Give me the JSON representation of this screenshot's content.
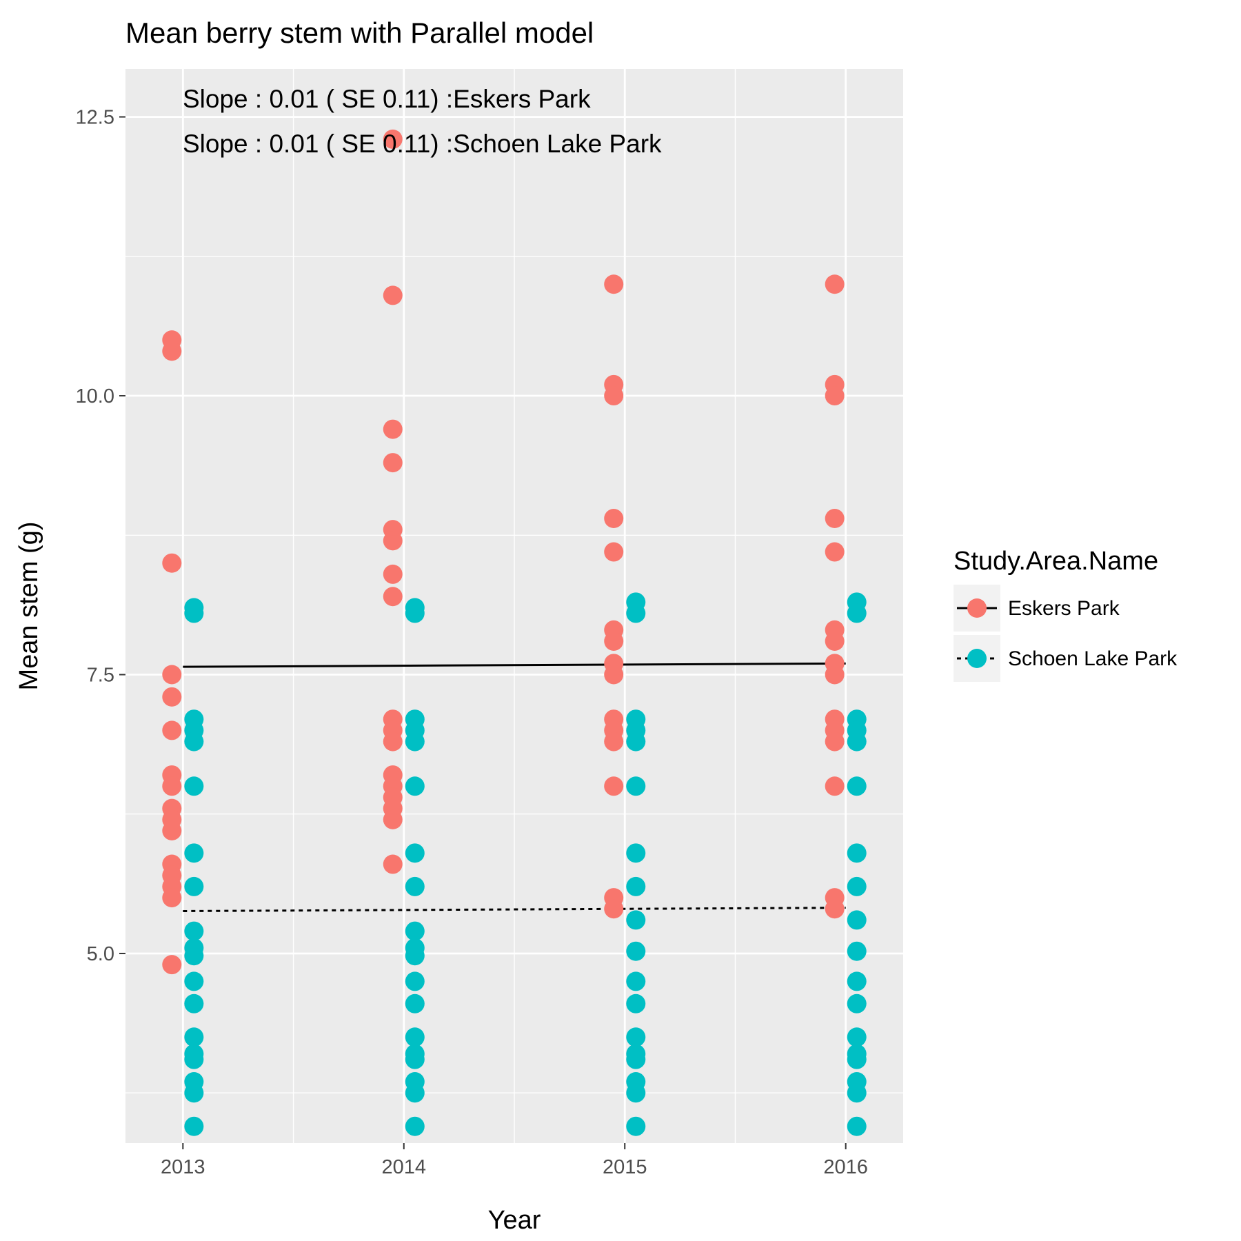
{
  "chart_data": {
    "type": "scatter",
    "title": "Mean berry stem with  Parallel model",
    "xlabel": "Year",
    "ylabel": "Mean stem (g)",
    "x_ticks": [
      "2013",
      "2014",
      "2015",
      "2016"
    ],
    "y_ticks": [
      "5.0",
      "7.5",
      "10.0",
      "12.5"
    ],
    "xlim": [
      2012.74,
      2016.26
    ],
    "ylim": [
      3.3,
      12.93
    ],
    "grid": true,
    "legend": {
      "title": "Study.Area.Name",
      "position": "right"
    },
    "annotations": [
      "Slope : 0.01 ( SE 0.11) :Eskers Park",
      "Slope : 0.01 ( SE 0.11) :Schoen Lake Park"
    ],
    "series": [
      {
        "name": "Eskers Park",
        "color": "#F8766D",
        "line_style": "solid",
        "fit_line": {
          "x": [
            2013,
            2016
          ],
          "y": [
            7.57,
            7.6
          ]
        },
        "points": [
          [
            2013,
            10.5
          ],
          [
            2013,
            10.4
          ],
          [
            2013,
            8.5
          ],
          [
            2013,
            7.5
          ],
          [
            2013,
            7.3
          ],
          [
            2013,
            7.0
          ],
          [
            2013,
            6.6
          ],
          [
            2013,
            6.5
          ],
          [
            2013,
            6.3
          ],
          [
            2013,
            6.2
          ],
          [
            2013,
            6.1
          ],
          [
            2013,
            5.8
          ],
          [
            2013,
            5.7
          ],
          [
            2013,
            5.6
          ],
          [
            2013,
            5.5
          ],
          [
            2013,
            4.9
          ],
          [
            2014,
            12.3
          ],
          [
            2014,
            10.9
          ],
          [
            2014,
            9.7
          ],
          [
            2014,
            9.4
          ],
          [
            2014,
            8.8
          ],
          [
            2014,
            8.7
          ],
          [
            2014,
            8.4
          ],
          [
            2014,
            8.2
          ],
          [
            2014,
            7.1
          ],
          [
            2014,
            7.0
          ],
          [
            2014,
            6.9
          ],
          [
            2014,
            6.6
          ],
          [
            2014,
            6.5
          ],
          [
            2014,
            6.4
          ],
          [
            2014,
            6.3
          ],
          [
            2014,
            6.2
          ],
          [
            2014,
            5.8
          ],
          [
            2015,
            11.0
          ],
          [
            2015,
            10.1
          ],
          [
            2015,
            10.0
          ],
          [
            2015,
            8.9
          ],
          [
            2015,
            8.6
          ],
          [
            2015,
            7.9
          ],
          [
            2015,
            7.8
          ],
          [
            2015,
            7.6
          ],
          [
            2015,
            7.5
          ],
          [
            2015,
            7.1
          ],
          [
            2015,
            7.0
          ],
          [
            2015,
            6.9
          ],
          [
            2015,
            6.5
          ],
          [
            2015,
            5.5
          ],
          [
            2015,
            5.4
          ],
          [
            2016,
            11.0
          ],
          [
            2016,
            10.1
          ],
          [
            2016,
            10.0
          ],
          [
            2016,
            8.9
          ],
          [
            2016,
            8.6
          ],
          [
            2016,
            7.9
          ],
          [
            2016,
            7.8
          ],
          [
            2016,
            7.6
          ],
          [
            2016,
            7.5
          ],
          [
            2016,
            7.1
          ],
          [
            2016,
            7.0
          ],
          [
            2016,
            6.9
          ],
          [
            2016,
            6.5
          ],
          [
            2016,
            5.5
          ],
          [
            2016,
            5.4
          ]
        ]
      },
      {
        "name": "Schoen Lake Park",
        "color": "#00BFC4",
        "line_style": "dotted",
        "fit_line": {
          "x": [
            2013,
            2016
          ],
          "y": [
            5.38,
            5.41
          ]
        },
        "points": [
          [
            2013,
            8.1
          ],
          [
            2013,
            8.05
          ],
          [
            2013,
            7.1
          ],
          [
            2013,
            7.0
          ],
          [
            2013,
            6.9
          ],
          [
            2013,
            6.5
          ],
          [
            2013,
            5.9
          ],
          [
            2013,
            5.6
          ],
          [
            2013,
            5.2
          ],
          [
            2013,
            5.05
          ],
          [
            2013,
            4.98
          ],
          [
            2013,
            4.75
          ],
          [
            2013,
            4.55
          ],
          [
            2013,
            4.25
          ],
          [
            2013,
            4.1
          ],
          [
            2013,
            4.05
          ],
          [
            2013,
            3.85
          ],
          [
            2013,
            3.75
          ],
          [
            2013,
            3.45
          ],
          [
            2014,
            8.1
          ],
          [
            2014,
            8.05
          ],
          [
            2014,
            7.1
          ],
          [
            2014,
            7.0
          ],
          [
            2014,
            6.9
          ],
          [
            2014,
            6.5
          ],
          [
            2014,
            5.9
          ],
          [
            2014,
            5.6
          ],
          [
            2014,
            5.2
          ],
          [
            2014,
            5.05
          ],
          [
            2014,
            4.98
          ],
          [
            2014,
            4.75
          ],
          [
            2014,
            4.55
          ],
          [
            2014,
            4.25
          ],
          [
            2014,
            4.1
          ],
          [
            2014,
            4.05
          ],
          [
            2014,
            3.85
          ],
          [
            2014,
            3.75
          ],
          [
            2014,
            3.45
          ],
          [
            2015,
            8.15
          ],
          [
            2015,
            8.05
          ],
          [
            2015,
            7.1
          ],
          [
            2015,
            7.0
          ],
          [
            2015,
            6.9
          ],
          [
            2015,
            6.5
          ],
          [
            2015,
            5.9
          ],
          [
            2015,
            5.6
          ],
          [
            2015,
            5.3
          ],
          [
            2015,
            5.02
          ],
          [
            2015,
            4.75
          ],
          [
            2015,
            4.55
          ],
          [
            2015,
            4.25
          ],
          [
            2015,
            4.1
          ],
          [
            2015,
            4.05
          ],
          [
            2015,
            3.85
          ],
          [
            2015,
            3.75
          ],
          [
            2015,
            3.45
          ],
          [
            2016,
            8.15
          ],
          [
            2016,
            8.05
          ],
          [
            2016,
            7.1
          ],
          [
            2016,
            7.0
          ],
          [
            2016,
            6.9
          ],
          [
            2016,
            6.5
          ],
          [
            2016,
            5.9
          ],
          [
            2016,
            5.6
          ],
          [
            2016,
            5.3
          ],
          [
            2016,
            5.02
          ],
          [
            2016,
            4.75
          ],
          [
            2016,
            4.55
          ],
          [
            2016,
            4.25
          ],
          [
            2016,
            4.1
          ],
          [
            2016,
            4.05
          ],
          [
            2016,
            3.85
          ],
          [
            2016,
            3.75
          ],
          [
            2016,
            3.45
          ]
        ]
      }
    ]
  }
}
